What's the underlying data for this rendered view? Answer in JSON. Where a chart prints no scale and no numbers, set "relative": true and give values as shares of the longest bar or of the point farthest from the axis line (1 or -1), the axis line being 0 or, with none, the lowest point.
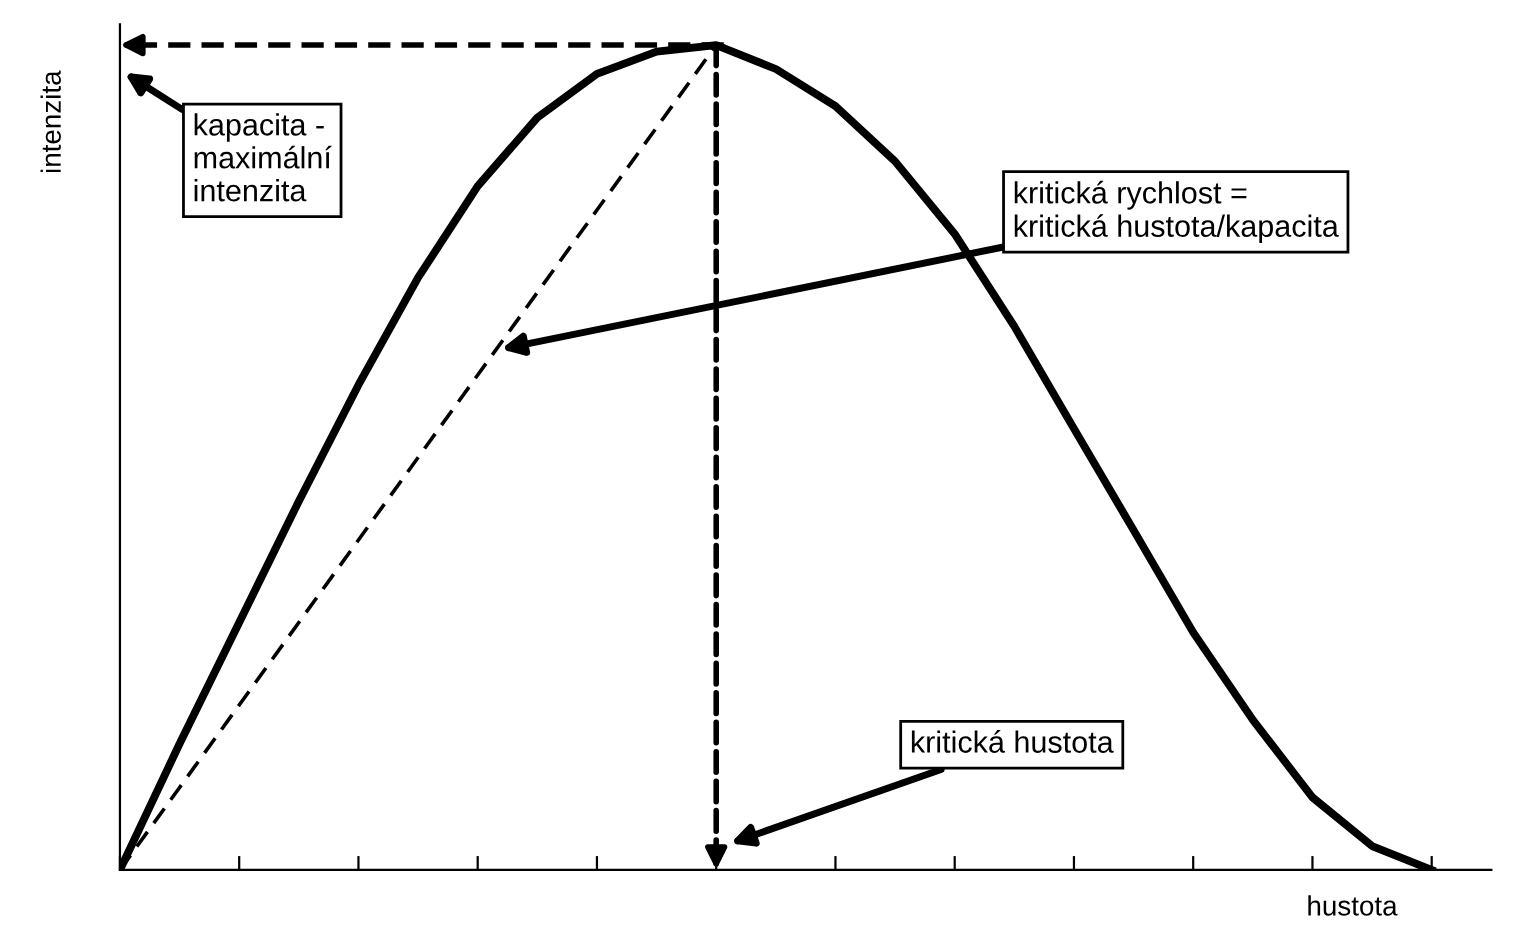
{
  "chart_data": {
    "type": "line",
    "relative": true,
    "xlabel": "hustota",
    "ylabel": "intenzita",
    "categories": [
      null,
      null,
      null,
      null,
      null,
      null,
      null,
      null,
      null,
      null,
      null,
      null,
      null,
      null,
      null,
      null,
      null,
      null,
      null,
      null,
      null,
      null,
      null,
      null
    ],
    "series": [
      {
        "color": "#000000",
        "values": [
          0,
          0.153,
          0.3,
          0.447,
          0.588,
          0.718,
          0.829,
          0.912,
          0.965,
          0.992,
          1.0,
          0.971,
          0.926,
          0.859,
          0.771,
          0.659,
          0.535,
          0.412,
          0.288,
          0.182,
          0.088,
          0.029,
          0,
          null
        ]
      },
      {
        "color": "#000000",
        "line_style": "dashed",
        "values": [
          0,
          0.1,
          0.2,
          0.3,
          0.4,
          0.5,
          0.6,
          0.7,
          0.8,
          0.9,
          1.0,
          null,
          null,
          null,
          null,
          null,
          null,
          null,
          null,
          null,
          null,
          null,
          null,
          null
        ]
      }
    ],
    "marker": "none",
    "line_style": "solid",
    "grid": false,
    "ref_lines": [
      {
        "axis": "y",
        "value": 1.0,
        "color": "#000000",
        "line_style": "dashed"
      }
    ],
    "annotations": [
      {
        "text": "kapacita -\nmaximální\nintenzita",
        "y": 1.0
      },
      "kritická rychlost =\nkritická hustota/kapacita",
      "kritická hustota"
    ]
  }
}
